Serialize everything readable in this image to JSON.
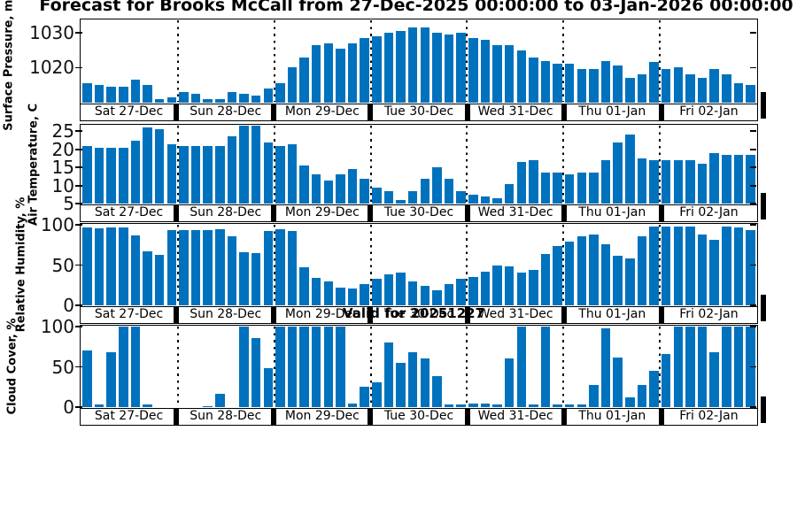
{
  "title": "Forecast for Brooks McCall from 27-Dec-2025 00:00:00 to 03-Jan-2026 00:00:00",
  "annotation": "Valid for 20251227",
  "colors": {
    "bar": "#0072BD",
    "axis": "#000000",
    "tick_label": "#111111"
  },
  "days": [
    "Sat 27-Dec",
    "Sun 28-Dec",
    "Mon 29-Dec",
    "Tue 30-Dec",
    "Wed 31-Dec",
    "Thu 01-Jan",
    "Fri 02-Jan"
  ],
  "bars_per_day": 8,
  "chart_data": [
    {
      "type": "bar",
      "ylabel": "Surface Pressure, mb",
      "xlabel": "",
      "categories": [
        "Sat 27-Dec",
        "Sun 28-Dec",
        "Mon 29-Dec",
        "Tue 30-Dec",
        "Wed 31-Dec",
        "Thu 01-Jan",
        "Fri 02-Jan"
      ],
      "ylim": [
        1010,
        1033.5
      ],
      "yticks": [
        1020,
        1030
      ],
      "grid": "dotted-day-boundaries",
      "values": [
        [
          1015.5,
          1015,
          1014.5,
          1014.5,
          1016.5,
          1015,
          1011,
          1011.5
        ],
        [
          1013,
          1012.5,
          1011,
          1011,
          1013,
          1012.5,
          1012,
          1014
        ],
        [
          1015.5,
          1020,
          1023,
          1026.5,
          1027,
          1025.5,
          1027,
          1028.5
        ],
        [
          1029,
          1030,
          1030.5,
          1031.5,
          1031.5,
          1030,
          1029.5,
          1030
        ],
        [
          1028.5,
          1028,
          1026.5,
          1026.5,
          1025,
          1023,
          1022,
          1021
        ],
        [
          1021,
          1019.5,
          1019.5,
          1022,
          1020.5,
          1017,
          1018,
          1021.5
        ],
        [
          1019.5,
          1020,
          1018,
          1017,
          1019.5,
          1018,
          1015.5,
          1015
        ]
      ]
    },
    {
      "type": "bar",
      "ylabel": "Air Temperature, C",
      "xlabel": "",
      "categories": [
        "Sat 27-Dec",
        "Sun 28-Dec",
        "Mon 29-Dec",
        "Tue 30-Dec",
        "Wed 31-Dec",
        "Thu 01-Jan",
        "Fri 02-Jan"
      ],
      "ylim": [
        5,
        26.6
      ],
      "yticks": [
        5,
        10,
        15,
        20,
        25
      ],
      "grid": "dotted-day-boundaries",
      "values": [
        [
          21,
          20.5,
          20.5,
          20.5,
          22.5,
          26,
          25.5,
          21.5
        ],
        [
          21,
          21,
          21,
          21,
          23.5,
          26.5,
          26.5,
          22
        ],
        [
          21,
          21.5,
          15.5,
          13,
          11.5,
          13,
          14.5,
          12
        ],
        [
          9.5,
          8.5,
          6,
          8.5,
          12,
          15,
          12,
          8.5
        ],
        [
          7.5,
          7,
          6.5,
          10.5,
          16.5,
          17,
          13.5,
          13.5
        ],
        [
          13,
          13.5,
          13.5,
          17,
          22,
          24,
          17.5,
          17
        ],
        [
          17,
          17,
          17,
          16,
          19,
          18.5,
          18.5,
          18.5
        ]
      ]
    },
    {
      "type": "bar",
      "ylabel": "Relative Humidity, %",
      "xlabel": "",
      "categories": [
        "Sat 27-Dec",
        "Sun 28-Dec",
        "Mon 29-Dec",
        "Tue 30-Dec",
        "Wed 31-Dec",
        "Thu 01-Jan",
        "Fri 02-Jan"
      ],
      "ylim": [
        0,
        100
      ],
      "yticks": [
        0,
        50,
        100
      ],
      "grid": "dotted-day-boundaries",
      "values": [
        [
          96,
          95,
          96,
          96,
          87,
          67,
          63,
          93
        ],
        [
          93,
          93,
          93,
          94,
          85,
          66,
          65,
          92
        ],
        [
          94,
          92,
          47,
          34,
          30,
          22,
          21,
          27
        ],
        [
          33,
          38,
          41,
          30,
          24,
          19,
          27,
          33
        ],
        [
          35,
          42,
          50,
          48,
          41,
          44,
          64,
          73
        ],
        [
          79,
          85,
          88,
          76,
          62,
          58,
          85,
          97
        ],
        [
          98,
          97,
          98,
          88,
          81,
          97,
          96,
          93
        ]
      ]
    },
    {
      "type": "bar",
      "ylabel": "Cloud Cover, %",
      "xlabel": "",
      "categories": [
        "Sat 27-Dec",
        "Sun 28-Dec",
        "Mon 29-Dec",
        "Tue 30-Dec",
        "Wed 31-Dec",
        "Thu 01-Jan",
        "Fri 02-Jan"
      ],
      "ylim": [
        0,
        100
      ],
      "yticks": [
        0,
        50,
        100
      ],
      "grid": "dotted-day-boundaries",
      "values": [
        [
          70,
          4,
          68,
          100,
          100,
          4,
          0,
          0
        ],
        [
          0,
          0,
          1,
          17,
          0,
          100,
          85,
          48
        ],
        [
          100,
          100,
          100,
          100,
          100,
          100,
          5,
          25
        ],
        [
          31,
          80,
          55,
          68,
          60,
          38,
          4,
          4
        ],
        [
          5,
          5,
          4,
          60,
          100,
          4,
          100,
          4
        ],
        [
          4,
          4,
          28,
          97,
          62,
          12,
          28,
          45
        ],
        [
          66,
          100,
          100,
          100,
          68,
          100,
          100,
          100
        ]
      ]
    }
  ]
}
